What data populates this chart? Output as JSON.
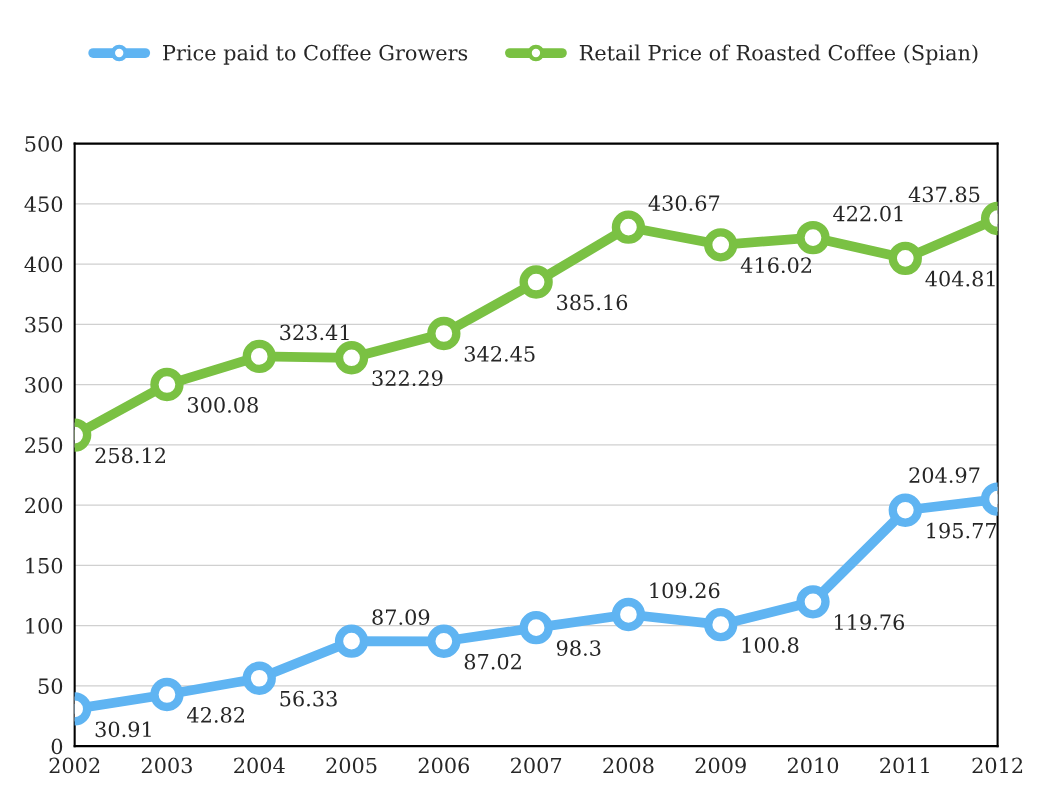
{
  "chart_data": {
    "type": "line",
    "categories": [
      "2002",
      "2003",
      "2004",
      "2005",
      "2006",
      "2007",
      "2008",
      "2009",
      "2010",
      "2011",
      "2012"
    ],
    "series": [
      {
        "name": "Price paid to Coffee Growers",
        "color": "#5fb4f2",
        "values": [
          30.91,
          42.82,
          56.33,
          87.09,
          87.02,
          98.3,
          109.26,
          100.8,
          119.76,
          195.77,
          204.97
        ]
      },
      {
        "name": "Retail Price of Roasted Coffee (Spian)",
        "color": "#7ac143",
        "values": [
          258.12,
          300.08,
          323.41,
          322.29,
          342.45,
          385.16,
          430.67,
          416.02,
          422.01,
          404.81,
          437.85
        ]
      }
    ],
    "ylim": [
      0,
      500
    ],
    "yticks": [
      0,
      50,
      100,
      150,
      200,
      250,
      300,
      350,
      400,
      450,
      500
    ],
    "grid": "y",
    "legend": "top",
    "marker": "circle",
    "line_style": "solid",
    "data_labels": true
  }
}
